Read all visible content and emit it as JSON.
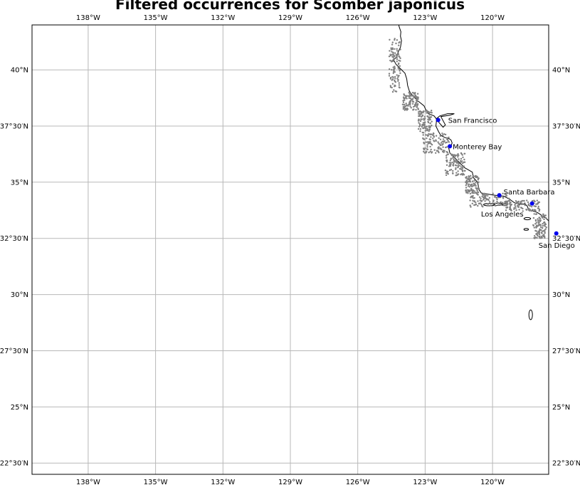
{
  "title": "Filtered occurrences for Scomber japonicus",
  "colors": {
    "gridline": "#b8b8b8",
    "coastline": "#000000",
    "occurrence": "#808080",
    "city_marker": "#0000ee",
    "frame": "#000000"
  },
  "map": {
    "projection": "plate-carree",
    "lon_range": [
      -140.5,
      -117.5
    ],
    "lat_range": [
      22.0,
      42.0
    ],
    "grid": true,
    "gridlines": {
      "lon_ticks": [
        {
          "value": -138,
          "label": "138°W"
        },
        {
          "value": -135,
          "label": "135°W"
        },
        {
          "value": -132,
          "label": "132°W"
        },
        {
          "value": -129,
          "label": "129°W"
        },
        {
          "value": -126,
          "label": "126°W"
        },
        {
          "value": -123,
          "label": "123°W"
        },
        {
          "value": -120,
          "label": "120°W"
        }
      ],
      "lat_ticks": [
        {
          "value": 40.0,
          "label": "40°N"
        },
        {
          "value": 37.5,
          "label": "37°30′N"
        },
        {
          "value": 35.0,
          "label": "35°N"
        },
        {
          "value": 32.5,
          "label": "32°30′N"
        },
        {
          "value": 30.0,
          "label": "30°N"
        },
        {
          "value": 27.5,
          "label": "27°30′N"
        },
        {
          "value": 25.0,
          "label": "25°N"
        },
        {
          "value": 22.5,
          "label": "22°30′N"
        }
      ]
    },
    "cities": [
      {
        "name": "San Francisco",
        "lon": -122.42,
        "lat": 37.77
      },
      {
        "name": "Monterey Bay",
        "lon": -121.9,
        "lat": 36.6
      },
      {
        "name": "Santa Barbara",
        "lon": -119.7,
        "lat": 34.42
      },
      {
        "name": "Los Angeles",
        "lon": -118.24,
        "lat": 34.05
      },
      {
        "name": "San Diego",
        "lon": -117.16,
        "lat": 32.72
      }
    ]
  }
}
